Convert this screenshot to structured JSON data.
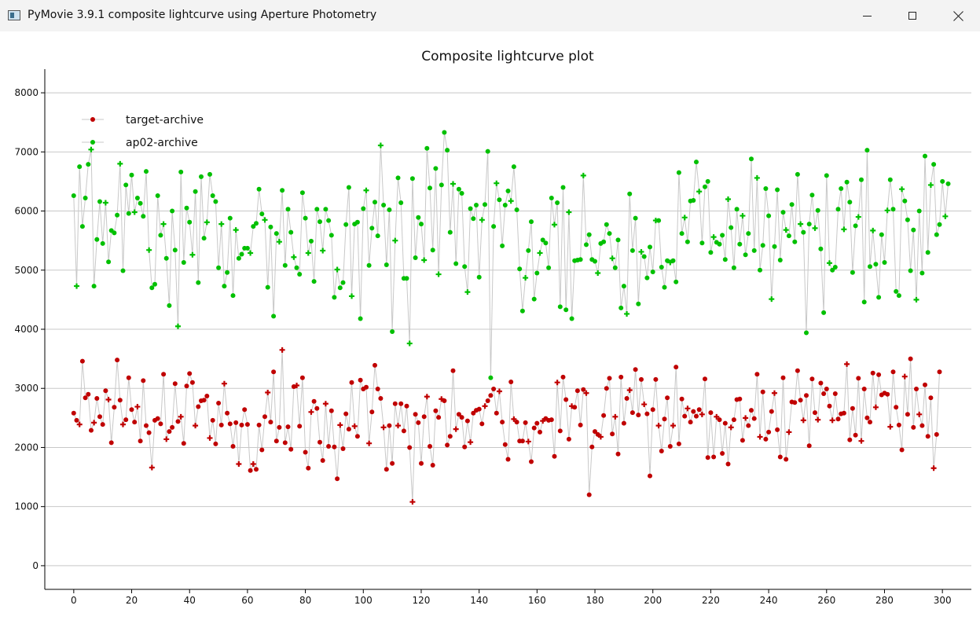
{
  "window": {
    "title": "PyMovie 3.9.1 composite lightcurve using Aperture Photometry",
    "icon": "app-window-icon",
    "controls": [
      "minimize-icon",
      "maximize-icon",
      "close-icon"
    ]
  },
  "chart_data": {
    "type": "line",
    "title": "Composite lightcurve plot",
    "xlabel": "",
    "ylabel": "",
    "xlim": [
      -10,
      310
    ],
    "ylim": [
      -400,
      8400
    ],
    "xticks": [
      0,
      20,
      40,
      60,
      80,
      100,
      120,
      140,
      160,
      180,
      200,
      220,
      240,
      260,
      280,
      300
    ],
    "yticks": [
      0,
      1000,
      2000,
      3000,
      4000,
      5000,
      6000,
      7000,
      8000
    ],
    "grid": "horizontal",
    "legend_position": "top-left",
    "line_color": "#c8c8c8",
    "x_start": 0,
    "x_step": 1,
    "series": [
      {
        "name": "target-archive",
        "color": "#c00000",
        "values": [
          2580,
          2460,
          2390,
          3460,
          2840,
          2900,
          2290,
          2420,
          2830,
          2520,
          2390,
          2960,
          2810,
          2080,
          2680,
          3480,
          2800,
          2390,
          2470,
          3180,
          2640,
          2430,
          2690,
          2110,
          3130,
          2370,
          2250,
          1660,
          2460,
          2490,
          2400,
          3240,
          2140,
          2270,
          2340,
          3080,
          2440,
          2520,
          2070,
          3040,
          3250,
          3100,
          2370,
          2690,
          2790,
          2800,
          2870,
          2160,
          2460,
          2060,
          2750,
          2380,
          3080,
          2580,
          2400,
          2020,
          2420,
          1720,
          2380,
          2640,
          2390,
          1610,
          1720,
          1630,
          2380,
          1960,
          2520,
          2930,
          2430,
          3280,
          2110,
          2340,
          3650,
          2080,
          2350,
          1970,
          3030,
          3050,
          2360,
          3180,
          1920,
          1650,
          2600,
          2780,
          2660,
          2090,
          1780,
          2740,
          2020,
          2620,
          2010,
          1470,
          2380,
          1980,
          2570,
          2310,
          3100,
          2360,
          2190,
          3140,
          2990,
          3020,
          2070,
          2600,
          3390,
          2990,
          2830,
          2340,
          1630,
          2370,
          1730,
          2740,
          2370,
          2740,
          2280,
          2700,
          2000,
          1080,
          2560,
          2420,
          1730,
          2520,
          2860,
          2020,
          1700,
          2620,
          2510,
          2820,
          2790,
          2040,
          2190,
          3300,
          2310,
          2560,
          2510,
          2010,
          2450,
          2090,
          2580,
          2630,
          2650,
          2400,
          2700,
          2790,
          2880,
          2990,
          2580,
          2950,
          2430,
          2050,
          1800,
          3110,
          2480,
          2430,
          2110,
          2110,
          2420,
          2100,
          1760,
          2330,
          2410,
          2260,
          2450,
          2490,
          2460,
          2470,
          1850,
          3100,
          2280,
          3190,
          2810,
          2140,
          2700,
          2680,
          2960,
          2380,
          2980,
          2920,
          1200,
          2010,
          2270,
          2220,
          2180,
          2540,
          3000,
          3170,
          2230,
          2520,
          1890,
          3190,
          2410,
          2830,
          2970,
          2590,
          3320,
          2550,
          3150,
          2730,
          2570,
          1520,
          2640,
          3150,
          2370,
          1940,
          2480,
          2840,
          2020,
          2370,
          3360,
          2060,
          2820,
          2530,
          2660,
          2430,
          2610,
          2530,
          2640,
          2560,
          3160,
          1830,
          2590,
          1840,
          2520,
          2470,
          1900,
          2410,
          1720,
          2340,
          2470,
          2810,
          2820,
          2120,
          2500,
          2370,
          2630,
          2490,
          3240,
          2180,
          2940,
          2140,
          2260,
          2610,
          2920,
          2300,
          1840,
          3180,
          1800,
          2260,
          2770,
          2760,
          3300,
          2800,
          2460,
          2880,
          2030,
          3160,
          2590,
          2470,
          3090,
          2910,
          2990,
          2700,
          2460,
          2910,
          2480,
          2570,
          2580,
          3410,
          2130,
          2660,
          2210,
          3170,
          2110,
          2990,
          2500,
          2430,
          3260,
          2680,
          3230,
          2890,
          2920,
          2900,
          2350,
          3280,
          2680,
          2380,
          1960,
          3200,
          2560,
          3500,
          2340,
          2990,
          2560,
          2370,
          3060,
          2190,
          2840,
          1650,
          2220,
          3280
        ]
      },
      {
        "name": "ap02-archive",
        "color": "#00c000",
        "values": [
          6260,
          4730,
          6750,
          5740,
          6220,
          6790,
          7040,
          4730,
          5520,
          6160,
          5450,
          6140,
          5140,
          5670,
          5630,
          5930,
          6800,
          4990,
          6440,
          5960,
          6610,
          5980,
          6220,
          6130,
          5910,
          6670,
          5340,
          4700,
          4760,
          6260,
          5590,
          5780,
          5200,
          4400,
          6000,
          5340,
          4050,
          6660,
          5130,
          6050,
          5810,
          5260,
          6330,
          4790,
          6580,
          5540,
          5810,
          6620,
          6260,
          6160,
          5040,
          5780,
          4730,
          4960,
          5880,
          4570,
          5680,
          5200,
          5270,
          5370,
          5370,
          5290,
          5740,
          5790,
          6370,
          5950,
          5850,
          4710,
          5730,
          4220,
          5620,
          5480,
          6350,
          5080,
          6030,
          5640,
          5220,
          5040,
          4930,
          6310,
          5880,
          5290,
          5490,
          4810,
          6030,
          5820,
          5330,
          6030,
          5840,
          5590,
          4540,
          5010,
          4700,
          4790,
          5770,
          6400,
          4560,
          5780,
          5810,
          4180,
          6040,
          6350,
          5080,
          5710,
          6150,
          5580,
          7110,
          6100,
          5090,
          6020,
          3960,
          5500,
          6560,
          6140,
          4860,
          4860,
          3760,
          6550,
          5210,
          5890,
          5780,
          5170,
          7060,
          6390,
          5340,
          6720,
          4930,
          6440,
          7330,
          7030,
          5640,
          6460,
          5110,
          6370,
          6300,
          5060,
          4630,
          6040,
          5870,
          6100,
          4880,
          5850,
          6110,
          7010,
          3180,
          5740,
          6470,
          6190,
          5410,
          6100,
          6340,
          6170,
          6750,
          6020,
          5020,
          4310,
          4870,
          5330,
          5820,
          4510,
          4950,
          5290,
          5510,
          5460,
          5040,
          6220,
          5770,
          6140,
          4380,
          6400,
          4330,
          5980,
          4180,
          5160,
          5170,
          5180,
          6600,
          5430,
          5600,
          5180,
          5150,
          4950,
          5450,
          5480,
          5770,
          5620,
          5200,
          5040,
          5510,
          4360,
          4730,
          4260,
          6290,
          5330,
          5880,
          4430,
          5310,
          5230,
          4870,
          5390,
          4970,
          5840,
          5840,
          5050,
          4710,
          5160,
          5130,
          5160,
          4800,
          6650,
          5620,
          5890,
          5480,
          6170,
          6180,
          6830,
          6330,
          5460,
          6410,
          6500,
          5300,
          5560,
          5470,
          5440,
          5590,
          5180,
          6200,
          5720,
          5040,
          6030,
          5440,
          5920,
          5260,
          5620,
          6880,
          5330,
          6560,
          5000,
          5420,
          6380,
          5920,
          4510,
          5400,
          6360,
          5170,
          5980,
          5680,
          5580,
          6110,
          5480,
          6620,
          5780,
          5640,
          3940,
          5780,
          6270,
          5710,
          6010,
          5360,
          4280,
          6600,
          5120,
          5000,
          5050,
          6030,
          6380,
          5690,
          6490,
          6150,
          4960,
          5750,
          5900,
          6530,
          4460,
          7030,
          5060,
          5670,
          5100,
          4540,
          5600,
          5130,
          6010,
          6530,
          6030,
          4640,
          4570,
          6370,
          6170,
          5850,
          4990,
          5680,
          4500,
          6000,
          4950,
          6930,
          5300,
          6440,
          6790,
          5600,
          5770,
          6500,
          5910,
          6460
        ]
      }
    ]
  }
}
